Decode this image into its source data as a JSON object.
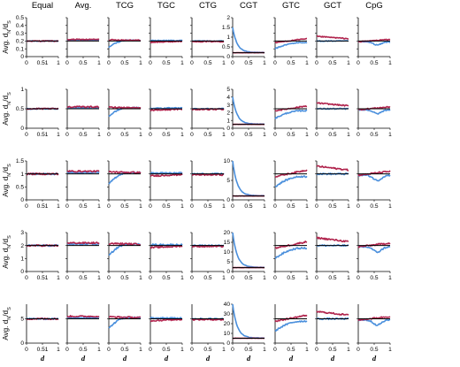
{
  "chart_data": {
    "type": "line",
    "layout": "small multiples grid, 5 rows by 9 columns",
    "column_titles": [
      "Equal",
      "Avg.",
      "TCG",
      "TGC",
      "CTG",
      "CGT",
      "GTC",
      "GCT",
      "CpG"
    ],
    "xlabel": "d",
    "xlim": [
      0,
      1
    ],
    "x_tick_labels": [
      "0",
      "0.5",
      "1"
    ],
    "x_tick_labels_equal_column": [
      "0",
      "0.51",
      "1"
    ],
    "ylabel_text": "Avg. d",
    "ylabel_sub_n": "N",
    "ylabel_sub_s": "S",
    "ylabel_slash": "/d",
    "colors": {
      "blue": "#4a8fdc",
      "red": "#b0244d",
      "black": "#000000"
    },
    "grid": false,
    "rows": [
      {
        "reference_line": 0.2,
        "ylim": [
          0,
          0.5
        ],
        "y_ticks": [
          0,
          0.1,
          0.2,
          0.3,
          0.4,
          0.5
        ],
        "cgt": {
          "ylim": [
            0,
            2
          ],
          "y_ticks": [
            0,
            0.5,
            1,
            1.5,
            2
          ]
        }
      },
      {
        "reference_line": 0.5,
        "ylim": [
          0,
          1
        ],
        "y_ticks": [
          0,
          0.5,
          1
        ],
        "cgt": {
          "ylim": [
            0,
            5
          ],
          "y_ticks": [
            0,
            1,
            2,
            3,
            4,
            5
          ]
        }
      },
      {
        "reference_line": 1,
        "ylim": [
          0,
          1.5
        ],
        "y_ticks": [
          0,
          0.5,
          1,
          1.5
        ],
        "cgt": {
          "ylim": [
            0,
            10
          ],
          "y_ticks": [
            0,
            5,
            10
          ]
        }
      },
      {
        "reference_line": 2,
        "ylim": [
          0,
          3
        ],
        "y_ticks": [
          0,
          1,
          2,
          3
        ],
        "cgt": {
          "ylim": [
            0,
            20
          ],
          "y_ticks": [
            0,
            5,
            10,
            15,
            20
          ]
        }
      },
      {
        "reference_line": 5,
        "ylim": [
          0,
          8
        ],
        "y_ticks": [
          0,
          5
        ],
        "cgt": {
          "ylim": [
            0,
            40
          ],
          "y_ticks": [
            0,
            10,
            20,
            30,
            40
          ]
        }
      }
    ],
    "series": [
      {
        "name": "blue",
        "color": "#4a8fdc",
        "profiles": {
          "Equal": {
            "start": 1.0,
            "end": 1.0
          },
          "Avg.": {
            "start": 1.05,
            "end": 1.05
          },
          "TCG": {
            "start": 0.6,
            "end": 1.05,
            "rise_to": 0.6
          },
          "TGC": {
            "start": 1.03,
            "end": 1.03
          },
          "CTG": {
            "start": 1.0,
            "end": 1.0
          },
          "CGT": {
            "start": 7.0,
            "end": 1.0,
            "decay_to": 0.45
          },
          "GTC": {
            "start": 0.5,
            "end": 0.9,
            "rise_to": 0.85
          },
          "GCT": {
            "start": 1.0,
            "end": 1.0
          },
          "CpG": {
            "start": 0.95,
            "end": 0.95,
            "dip_at": 0.6,
            "dip_depth": 0.2
          }
        }
      },
      {
        "name": "red",
        "color": "#b0244d",
        "profiles": {
          "Equal": {
            "start": 1.0,
            "end": 1.0
          },
          "Avg.": {
            "start": 1.1,
            "end": 1.1
          },
          "TCG": {
            "start": 1.08,
            "end": 1.05
          },
          "TGC": {
            "start": 0.92,
            "end": 0.98
          },
          "CTG": {
            "start": 0.97,
            "end": 0.97
          },
          "CGT": {
            "start": 1.0,
            "end": 1.0
          },
          "GTC": {
            "start": 0.9,
            "end": 1.15
          },
          "GCT": {
            "start": 1.3,
            "end": 1.15
          },
          "CpG": {
            "start": 0.95,
            "end": 1.1
          }
        }
      }
    ],
    "row_scale_factor": [
      0.2,
      0.5,
      1,
      2,
      5
    ],
    "cgt_blue_peak_by_row": [
      1.5,
      4,
      10,
      20,
      40
    ]
  }
}
